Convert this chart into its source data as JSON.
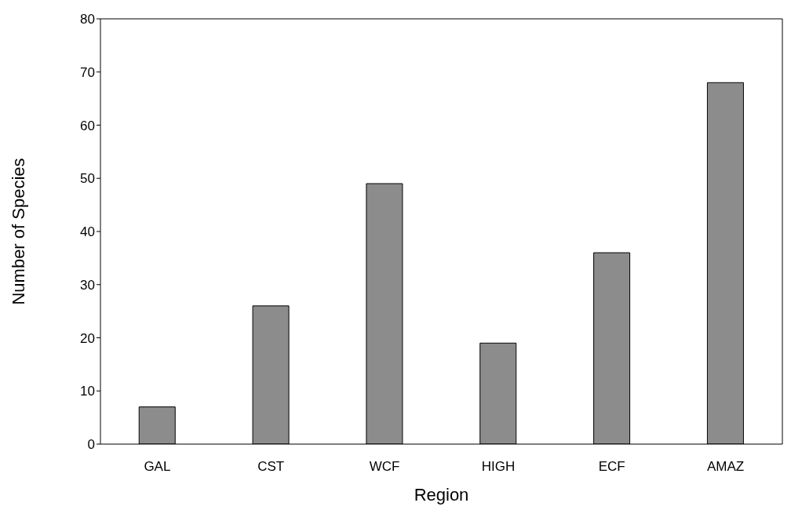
{
  "chart_data": {
    "type": "bar",
    "xlabel": "Region",
    "ylabel": "Number of Species",
    "categories": [
      "GAL",
      "CST",
      "WCF",
      "HIGH",
      "ECF",
      "AMAZ"
    ],
    "values": [
      7,
      26,
      49,
      19,
      36,
      68
    ],
    "color": "#8c8c8c",
    "ylim": [
      0,
      80
    ],
    "yticks": [
      0,
      10,
      20,
      30,
      40,
      50,
      60,
      70,
      80
    ],
    "grid": false,
    "legend": false
  }
}
